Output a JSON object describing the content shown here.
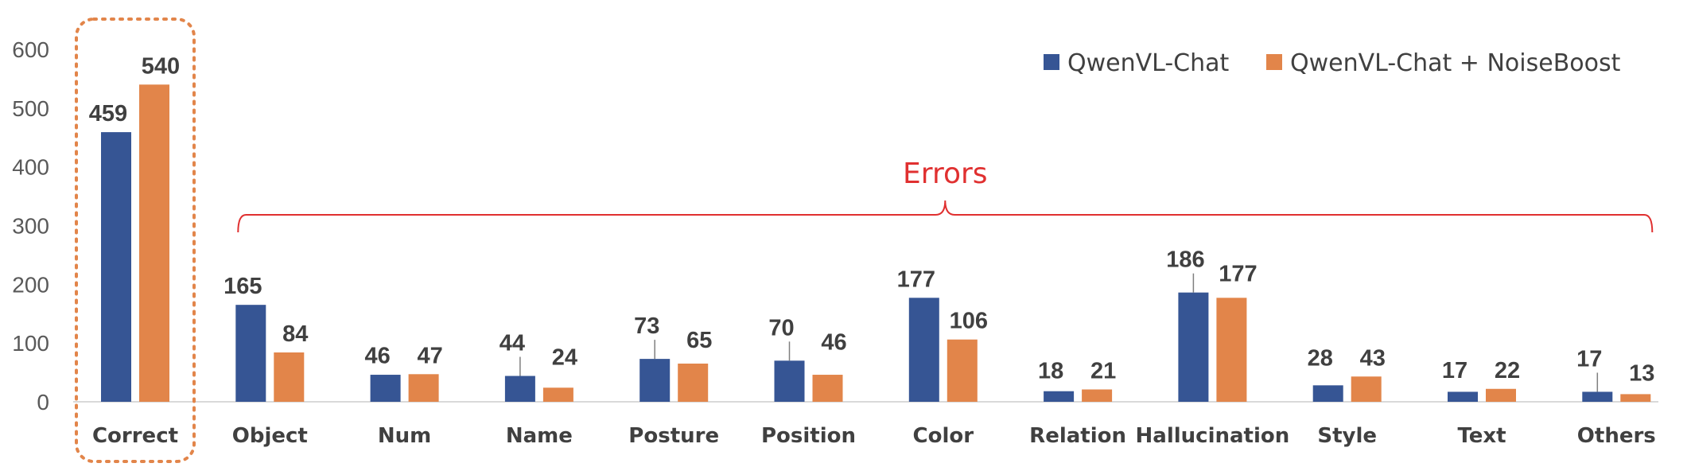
{
  "chart_data": {
    "type": "bar",
    "categories": [
      "Correct",
      "Object",
      "Num",
      "Name",
      "Posture",
      "Position",
      "Color",
      "Relation",
      "Hallucination",
      "Style",
      "Text",
      "Others"
    ],
    "series": [
      {
        "name": "QwenVL-Chat",
        "values": [
          459,
          165,
          46,
          44,
          73,
          70,
          177,
          18,
          186,
          28,
          17,
          17
        ],
        "color": "#365594"
      },
      {
        "name": "QwenVL-Chat + NoiseBoost",
        "values": [
          540,
          84,
          47,
          24,
          65,
          46,
          106,
          21,
          177,
          43,
          22,
          13
        ],
        "color": "#e2854a"
      }
    ],
    "y_ticks": [
      0,
      100,
      200,
      300,
      400,
      500,
      600
    ],
    "ylim": [
      0,
      600
    ],
    "grid": false,
    "legend_position": "top-right",
    "annotation": {
      "text": "Errors",
      "color": "#e03030",
      "spans": "Object to Others"
    },
    "highlight": {
      "category": "Correct",
      "style": "dotted box",
      "color": "#e2854a"
    }
  }
}
